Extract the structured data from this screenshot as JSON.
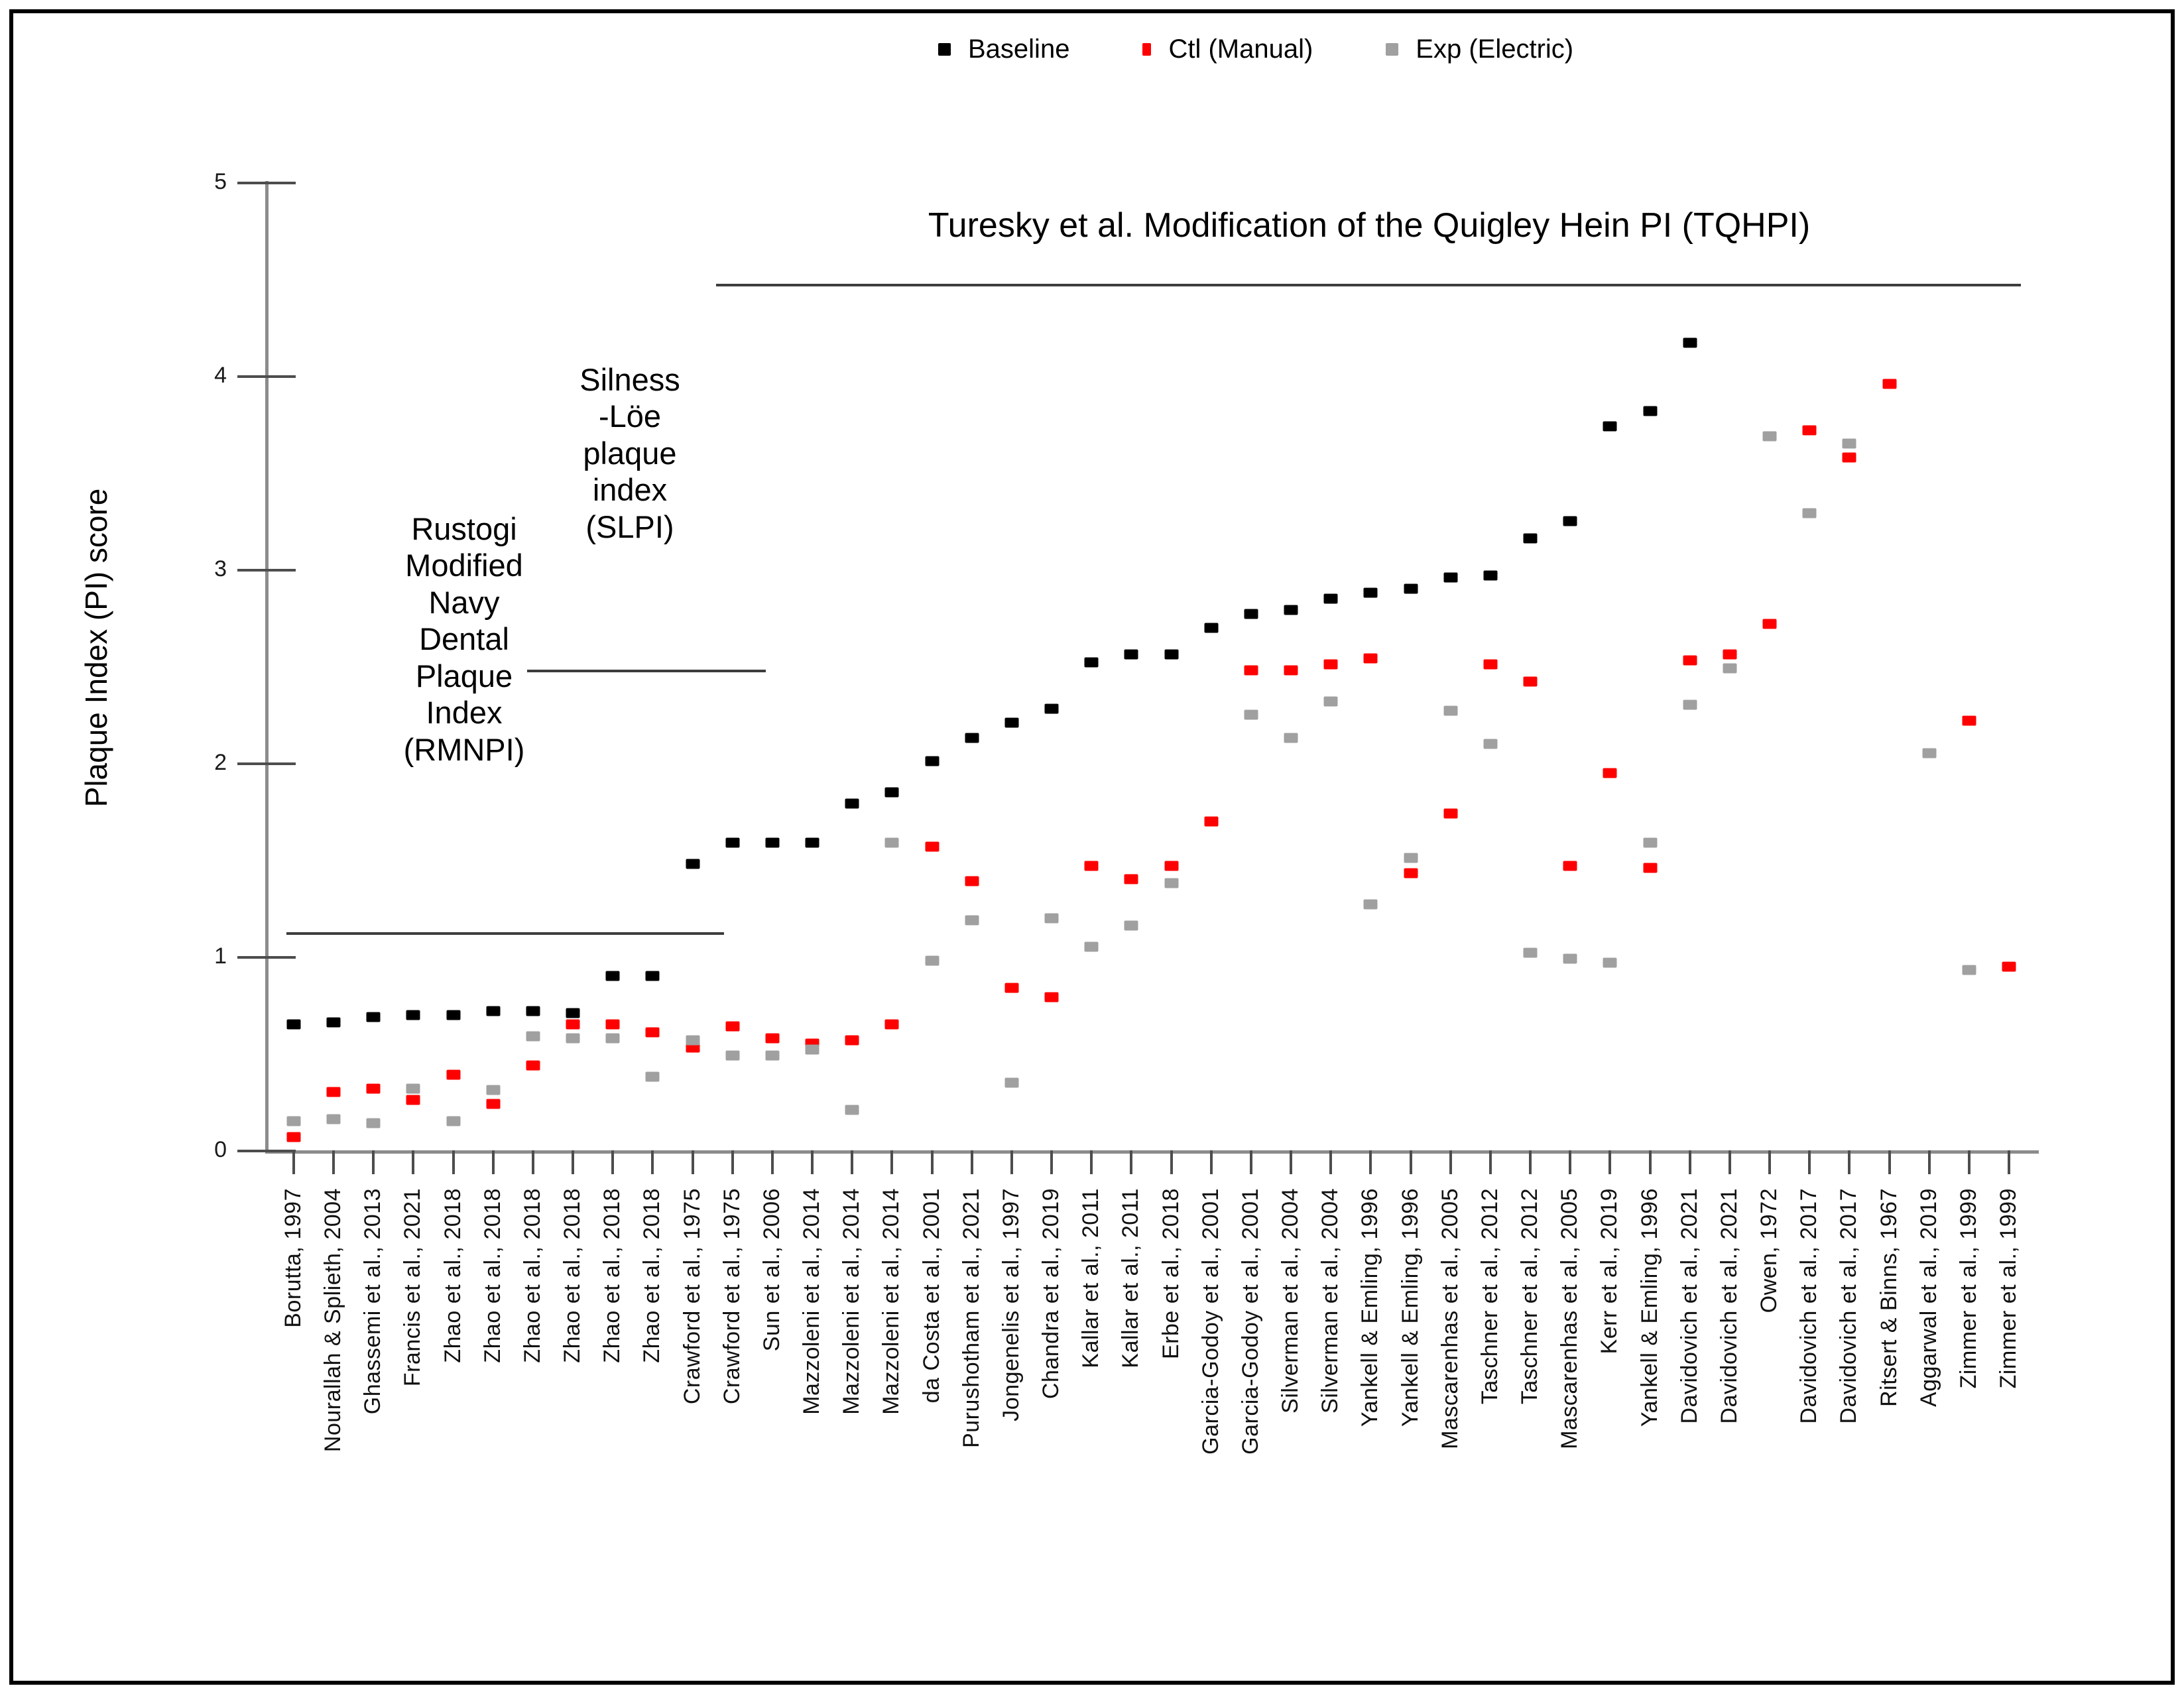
{
  "legend": [
    {
      "label": "Baseline",
      "color": "#000000"
    },
    {
      "label": "Ctl  (Manual)",
      "color": "#ff0000"
    },
    {
      "label": "Exp  (Electric)",
      "color": "#a0a0a0"
    }
  ],
  "annotations": {
    "rmnpi": {
      "lines": [
        "Rustogi",
        "Modified",
        "Navy",
        "Dental",
        "Plaque",
        "Index",
        "(RMNPI)"
      ]
    },
    "slpi": {
      "lines": [
        "Silness",
        "-Löe",
        "plaque",
        "index",
        "(SLPI)"
      ]
    },
    "tqhpi": {
      "text": "Turesky et al. Modification of the Quigley Hein PI (TQHPI)"
    }
  },
  "chart_data": {
    "type": "scatter",
    "title": "",
    "xlabel": "",
    "ylabel": "Plaque Index (PI) score",
    "ylim": [
      0,
      5
    ],
    "yticks": [
      0,
      1,
      2,
      3,
      4,
      5
    ],
    "grid": false,
    "legend_position": "top",
    "categories": [
      "Borutta,  1997",
      "Nourallah & Splieth,  2004",
      "Ghassemi et al.,  2013",
      "Francis et al.,  2021",
      "Zhao et al.,  2018",
      "Zhao et al.,  2018",
      "Zhao et al.,  2018",
      "Zhao et al.,  2018",
      "Zhao et al.,  2018",
      "Zhao et al.,  2018",
      "Crawford et al.,  1975",
      "Crawford et al.,  1975",
      "Sun et al.,  2006",
      "Mazzoleni et al.,  2014",
      "Mazzoleni et al.,  2014",
      "Mazzoleni et al.,  2014",
      "da Costa et al.,  2001",
      "Purushotham et al.,  2021",
      "Jongenelis et al.,  1997",
      "Chandra et al.,  2019",
      "Kallar et al.,  2011",
      "Kallar et al.,  2011",
      "Erbe et al.,  2018",
      "Garcia-Godoy et al.,  2001",
      "Garcia-Godoy et al.,  2001",
      "Silverman et al.,  2004",
      "Silverman et al.,  2004",
      "Yankell & Emling,  1996",
      "Yankell & Emling,  1996",
      "Mascarenhas et al.,  2005",
      "Taschner et al.,  2012",
      "Taschner et al.,  2012",
      "Mascarenhas et al.,  2005",
      "Kerr et al.,  2019",
      "Yankell & Emling,  1996",
      "Davidovich et al.,  2021",
      "Davidovich et al.,  2021",
      "Owen,  1972",
      "Davidovich et al.,  2017",
      "Davidovich et al.,  2017",
      "Ritsert & Binns,  1967",
      "Aggarwal et al.,  2019",
      "Zimmer et al.,  1999",
      "Zimmer et al.,  1999"
    ],
    "series": [
      {
        "name": "Baseline",
        "color": "#000000",
        "values": [
          0.65,
          0.66,
          0.69,
          0.7,
          0.7,
          0.72,
          0.72,
          0.71,
          0.9,
          0.9,
          1.48,
          1.59,
          1.59,
          1.59,
          1.79,
          1.85,
          2.01,
          2.13,
          2.21,
          2.28,
          2.52,
          2.56,
          2.56,
          2.7,
          2.77,
          2.79,
          2.85,
          2.88,
          2.9,
          2.96,
          2.97,
          3.16,
          3.25,
          3.74,
          3.82,
          4.17,
          null,
          null,
          null,
          null,
          null,
          null,
          null,
          null
        ]
      },
      {
        "name": "Ctl  (Manual)",
        "color": "#ff0000",
        "values": [
          0.07,
          0.3,
          0.32,
          0.26,
          0.39,
          0.24,
          0.44,
          0.65,
          0.65,
          0.61,
          0.53,
          0.64,
          0.58,
          0.55,
          0.57,
          0.65,
          1.57,
          1.39,
          0.84,
          0.79,
          1.47,
          1.4,
          1.47,
          1.7,
          2.48,
          2.48,
          2.51,
          2.54,
          1.43,
          1.74,
          2.51,
          2.42,
          1.47,
          1.95,
          1.46,
          2.53,
          2.56,
          2.72,
          3.72,
          3.58,
          3.96,
          null,
          2.22,
          0.95
        ]
      },
      {
        "name": "Exp  (Electric)",
        "color": "#a0a0a0",
        "values": [
          0.15,
          0.16,
          0.14,
          0.32,
          0.15,
          0.31,
          0.59,
          0.58,
          0.58,
          0.38,
          0.57,
          0.49,
          0.49,
          0.52,
          0.21,
          1.59,
          0.98,
          1.19,
          0.35,
          1.2,
          1.05,
          1.16,
          1.38,
          null,
          2.25,
          2.13,
          2.32,
          1.27,
          1.51,
          2.27,
          2.1,
          1.02,
          0.99,
          0.97,
          1.59,
          2.3,
          2.49,
          3.69,
          3.29,
          3.65,
          null,
          2.05,
          0.93,
          null
        ]
      }
    ]
  }
}
